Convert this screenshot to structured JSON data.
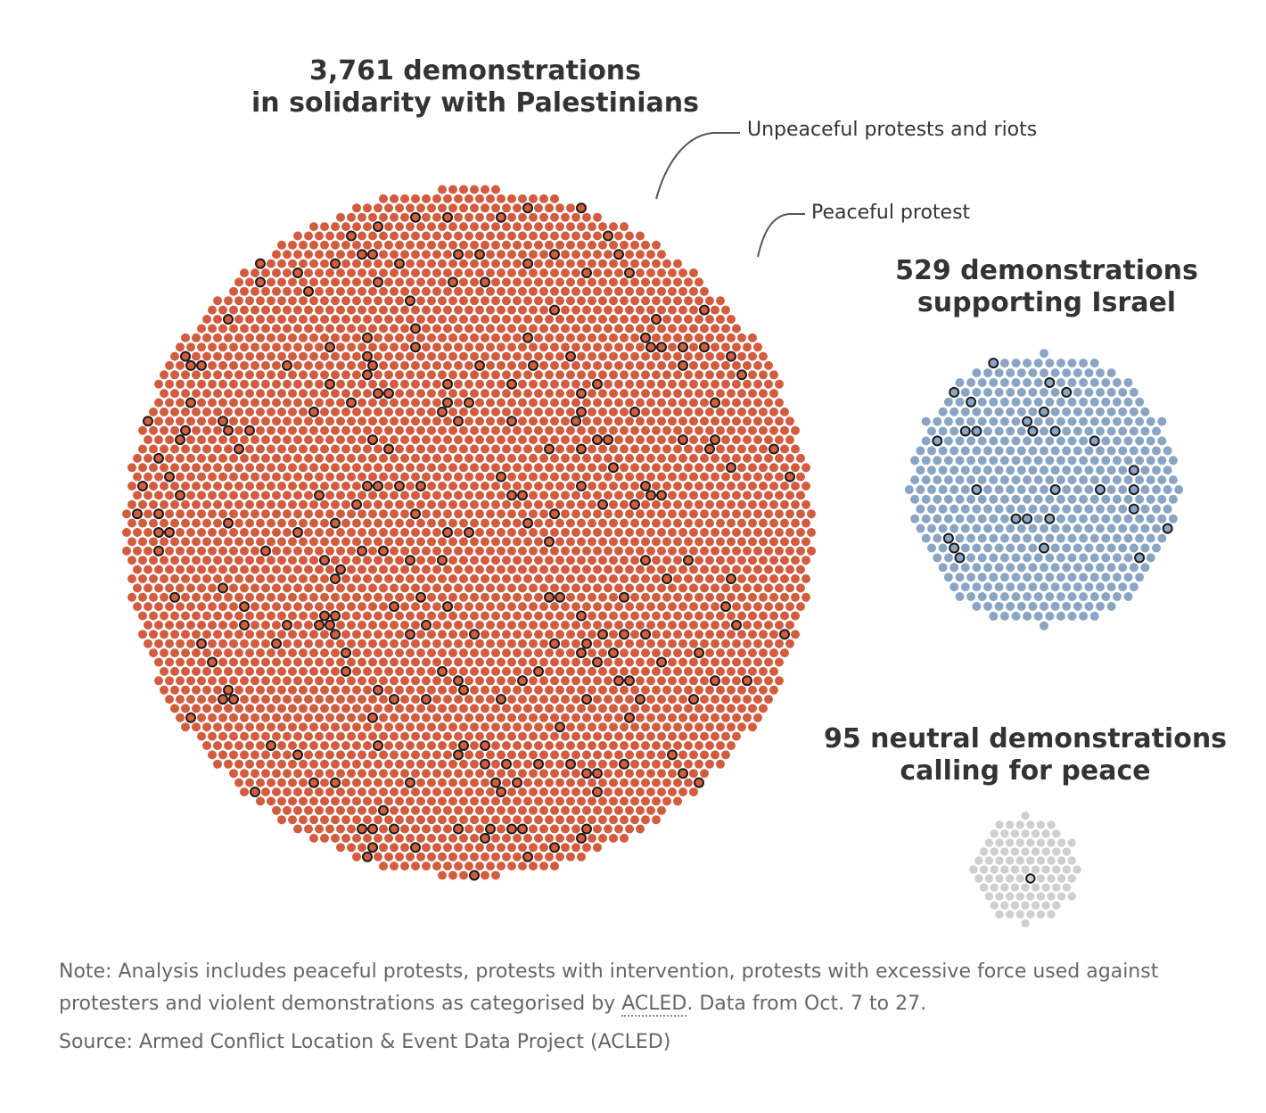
{
  "colors": {
    "palestine": "#d35c3f",
    "israel": "#8aa5c4",
    "peace": "#cfcfcf",
    "unpeaceful_outline": "#1a1a1a"
  },
  "chart_data": [
    {
      "type": "dot-cluster",
      "group": "palestine",
      "title_line1": "3,761 demonstrations",
      "title_line2": "in solidarity with Palestinians",
      "total": 3761
    },
    {
      "type": "dot-cluster",
      "group": "israel",
      "title_line1": "529 demonstrations",
      "title_line2": "supporting Israel",
      "total": 529
    },
    {
      "type": "dot-cluster",
      "group": "peace",
      "title_line1": "95 neutral demonstrations",
      "title_line2": "calling for peace",
      "total": 95
    }
  ],
  "legend": {
    "unpeaceful": "Unpeaceful protests and riots",
    "peaceful": "Peaceful protest"
  },
  "footer": {
    "note_before": "Note: Analysis includes peaceful protests, protests with intervention, protests with excessive force used against protesters and violent demonstrations as categorised by ",
    "note_link": "ACLED",
    "note_after": ". Data from Oct. 7 to 27.",
    "source": "Source: Armed Conflict Location & Event Data Project (ACLED)"
  }
}
